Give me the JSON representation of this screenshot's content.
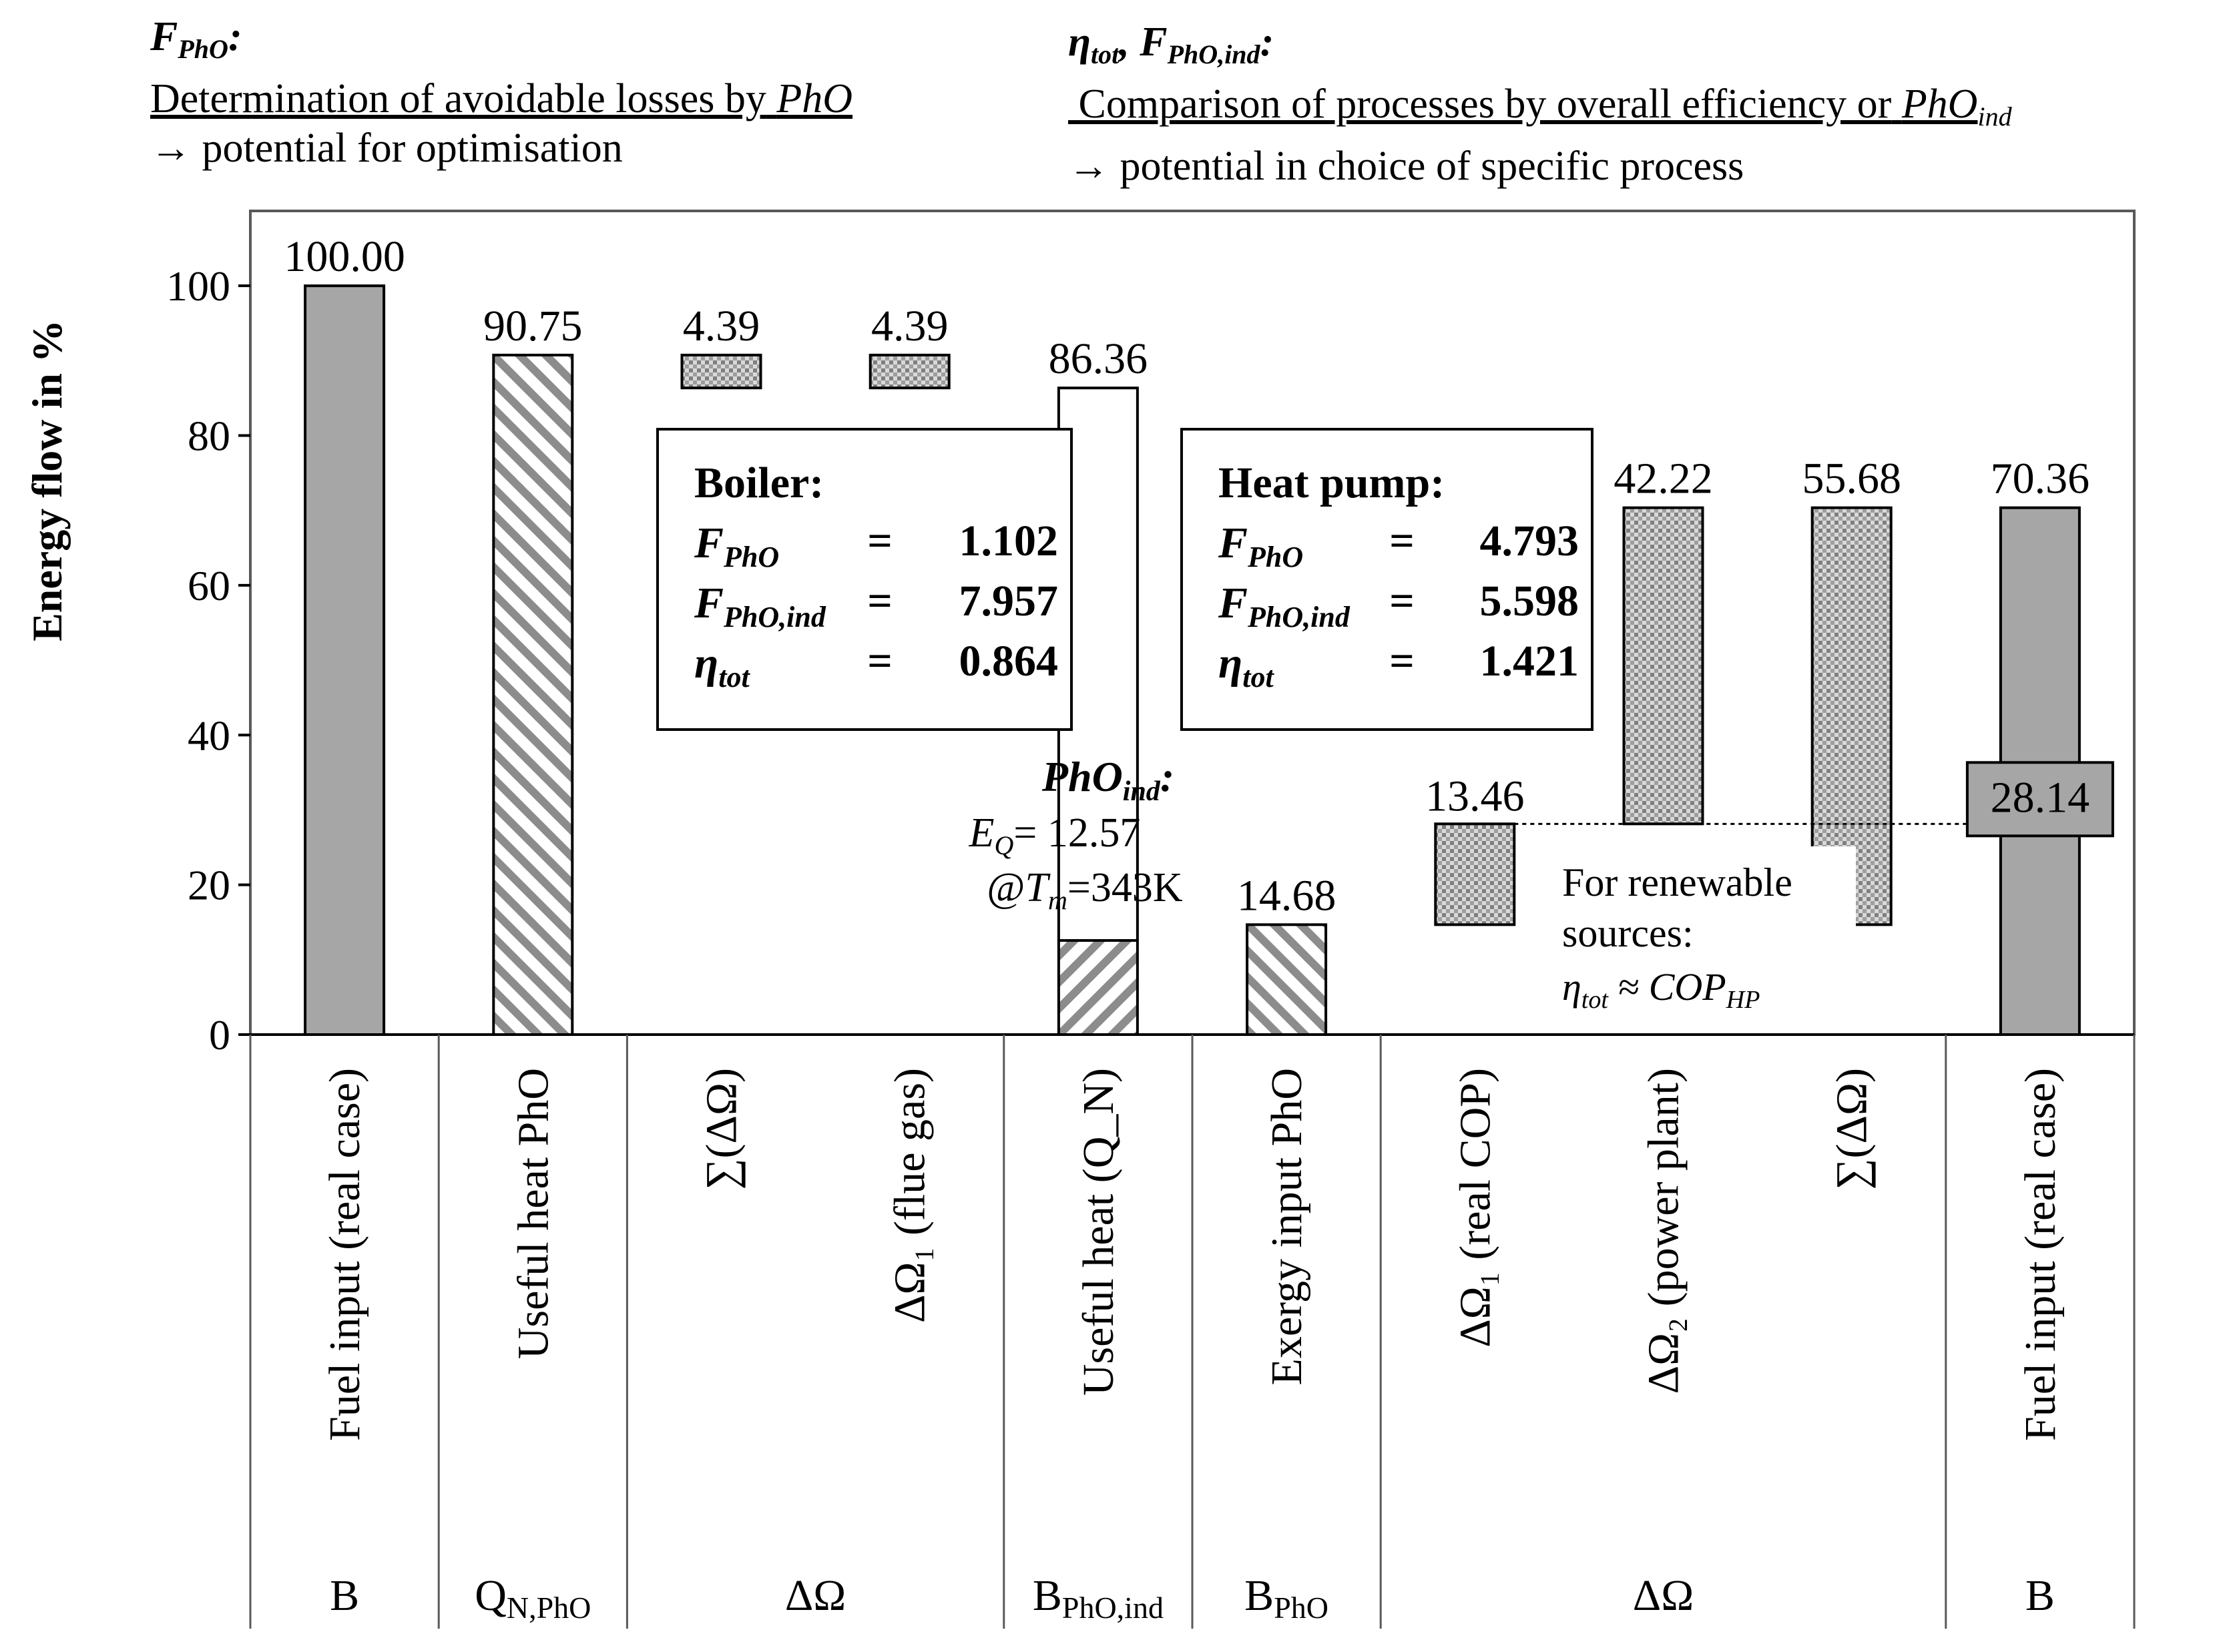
{
  "chart_data": {
    "type": "bar",
    "ylabel": "Energy flow in %",
    "ylim": [
      0,
      110
    ],
    "yticks": [
      0,
      20,
      40,
      60,
      80,
      100
    ],
    "ytick_labels": [
      "0",
      "20",
      "40",
      "60",
      "80",
      "100"
    ],
    "bars": [
      {
        "key": "fuel1",
        "label": "Fuel input (real case)",
        "low": 0,
        "high": 100.0,
        "value_label": "100.00",
        "pattern": "solid"
      },
      {
        "key": "useful_pho",
        "label": "Useful heat PhO",
        "low": 0,
        "high": 90.75,
        "value_label": "90.75",
        "pattern": "hatch"
      },
      {
        "key": "sum1",
        "label": "∑(ΔΩ)",
        "low": 86.36,
        "high": 90.75,
        "value_label": "4.39",
        "pattern": "dots"
      },
      {
        "key": "flue",
        "label": "ΔΩ₁ (flue gas)",
        "low": 86.36,
        "high": 90.75,
        "value_label": "4.39",
        "pattern": "dots"
      },
      {
        "key": "useful_qn",
        "label": "Useful heat (Q_N)",
        "low": 12.57,
        "high": 86.36,
        "value_label": "86.36",
        "pattern": "hollow",
        "inner_low": 0,
        "inner_high": 12.57,
        "inner_pattern": "hatch2"
      },
      {
        "key": "exergy",
        "label": "Exergy input PhO",
        "low": 0,
        "high": 14.68,
        "value_label": "14.68",
        "pattern": "hatch"
      },
      {
        "key": "cop",
        "label": "ΔΩ₁ (real COP)",
        "low": 14.68,
        "high": 28.14,
        "value_label": "13.46",
        "pattern": "dots"
      },
      {
        "key": "pp",
        "label": "ΔΩ₂ (power plant)",
        "low": 28.14,
        "high": 70.36,
        "value_label": "42.22",
        "pattern": "dots"
      },
      {
        "key": "sum2",
        "label": "∑(ΔΩ)",
        "low": 14.68,
        "high": 70.36,
        "value_label": "55.68",
        "pattern": "dots"
      },
      {
        "key": "fuel2",
        "label": "Fuel input (real case)",
        "low": 0,
        "high": 70.36,
        "value_label": "70.36",
        "pattern": "solid",
        "marker_level": 28.14,
        "marker_label": "28.14"
      }
    ],
    "groups": [
      {
        "label": "B",
        "sub": ""
      },
      {
        "label": "Q",
        "sub": "N,PhO"
      },
      {
        "label": "ΔΩ",
        "sub": ""
      },
      {
        "label": "B",
        "sub": "PhO,ind"
      },
      {
        "label": "B",
        "sub": "PhO"
      },
      {
        "label": "ΔΩ",
        "sub": ""
      },
      {
        "label": "B",
        "sub": ""
      }
    ],
    "boiler": {
      "title": "Boiler:",
      "f_pho": "1.102",
      "f_pho_ind": "7.957",
      "eta_tot": "0.864"
    },
    "heat_pump": {
      "title": "Heat pump:",
      "f_pho": "4.793",
      "f_pho_ind": "5.598",
      "eta_tot": "1.421"
    },
    "pho_ind": {
      "title": "PhO",
      "title_sub": "ind",
      "eq_value": "12.57",
      "tm_value": "343K"
    },
    "renewable": {
      "line1": "For renewable",
      "line2": "sources:",
      "formula": "η",
      "formula_sub": "tot",
      "approx": "≈ COP",
      "approx_sub": "HP"
    }
  },
  "header": {
    "left": {
      "sym": "F",
      "sym_sub": "PhO",
      "text": "Determination of avoidable losses by",
      "text_it": "PhO",
      "arrow_text": "→ potential for optimisation"
    },
    "right": {
      "sym": "η",
      "sym_sub": "tot",
      "sym2": "F",
      "sym2_sub": "PhO,ind",
      "text": "Comparison of processes by overall efficiency or",
      "text_it": "PhO",
      "text_it_sub": "ind",
      "arrow_text": "→ potential in choice of specific process"
    }
  },
  "colors": {
    "solid": "#a6a6a6",
    "hatch": "#8c8c8c",
    "dots": "#9a9a9a",
    "frame": "#595959"
  }
}
